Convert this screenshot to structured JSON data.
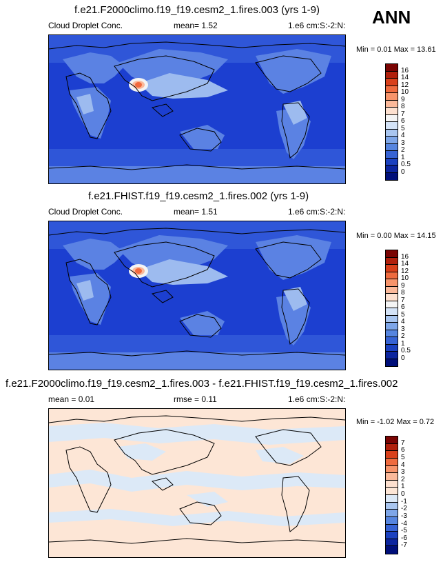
{
  "season": "ANN",
  "panels": [
    {
      "title": "f.e21.F2000climo.f19_f19.cesm2_1.fires.003 (yrs 1-9)",
      "variable": "Cloud Droplet Conc.",
      "mean": "mean=   1.52",
      "units": "1.e6 cm:S:-2:N:",
      "minmax": "Min =  0.01 Max = 13.61",
      "cbar_labels": [
        "16",
        "14",
        "12",
        "10",
        "9",
        "8",
        "7",
        "6",
        "5",
        "4",
        "3",
        "2",
        "1",
        "0.5",
        "0"
      ]
    },
    {
      "title": "f.e21.FHIST.f19_f19.cesm2_1.fires.002 (yrs 1-9)",
      "variable": "Cloud Droplet Conc.",
      "mean": "mean=   1.51",
      "units": "1.e6 cm:S:-2:N:",
      "minmax": "Min =  0.00 Max = 14.15",
      "cbar_labels": [
        "16",
        "14",
        "12",
        "10",
        "9",
        "8",
        "7",
        "6",
        "5",
        "4",
        "3",
        "2",
        "1",
        "0.5",
        "0"
      ]
    },
    {
      "title": "f.e21.F2000climo.f19_f19.cesm2_1.fires.003 - f.e21.FHIST.f19_f19.cesm2_1.fires.002",
      "mean": "mean =   0.01",
      "rmse": "rmse =   0.11",
      "units": "1.e6 cm:S:-2:N:",
      "minmax": "Min = -1.02 Max =  0.72",
      "cbar_labels": [
        "7",
        "6",
        "5",
        "4",
        "3",
        "2",
        "1",
        "0",
        "-1",
        "-2",
        "-3",
        "-4",
        "-5",
        "-6",
        "-7"
      ]
    }
  ],
  "colors": {
    "abs_scale": [
      "#7a0403",
      "#b1200c",
      "#d9401b",
      "#ef6b3f",
      "#f7946b",
      "#fbb99a",
      "#fde0cf",
      "#f4f4f4",
      "#d4e3f7",
      "#a9c6f0",
      "#7ea6e8",
      "#5685df",
      "#3763d4",
      "#1b41c0",
      "#0c259f",
      "#000f7a"
    ],
    "diff_scale": [
      "#7a0403",
      "#b1200c",
      "#d9401b",
      "#ef6b3f",
      "#f7946b",
      "#fbb99a",
      "#fde0cf",
      "#fde6d6",
      "#dce9f7",
      "#a9c6f0",
      "#7ea6e8",
      "#5685df",
      "#3763d4",
      "#1b41c0",
      "#0c259f",
      "#000f7a"
    ],
    "ocean_dark": "#1c3fd0",
    "ocean_mid": "#2f56d8",
    "ocean_light": "#5b82e3",
    "ocean_pale": "#9dbbef",
    "hotspot": "#f26a3e",
    "diff_pos": "#fde6d6",
    "diff_neg": "#dce9f7"
  }
}
